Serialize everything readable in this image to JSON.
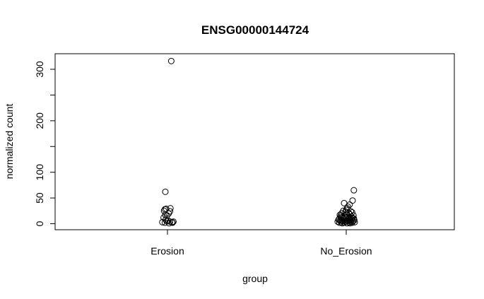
{
  "chart_data": {
    "type": "scatter",
    "title": "ENSG00000144724",
    "xlabel": "group",
    "ylabel": "normalized count",
    "categories": [
      "Erosion",
      "No_Erosion"
    ],
    "yticks": [
      0,
      50,
      100,
      200,
      300
    ],
    "ylim": [
      -10,
      325
    ],
    "grid": false,
    "legend": "none",
    "series": [
      {
        "group": "Erosion",
        "points": [
          {
            "j": 0.09,
            "y": 316
          },
          {
            "j": -0.05,
            "y": 62
          },
          {
            "j": -0.06,
            "y": 28
          },
          {
            "j": -0.03,
            "y": 29
          },
          {
            "j": 0.07,
            "y": 30
          },
          {
            "j": -0.08,
            "y": 25
          },
          {
            "j": 0.06,
            "y": 24
          },
          {
            "j": 0.03,
            "y": 20
          },
          {
            "j": -0.05,
            "y": 17
          },
          {
            "j": -0.01,
            "y": 16
          },
          {
            "j": -0.09,
            "y": 12
          },
          {
            "j": -0.04,
            "y": 8
          },
          {
            "j": 0.02,
            "y": 6
          },
          {
            "j": -0.02,
            "y": 5
          },
          {
            "j": 0.06,
            "y": 4
          },
          {
            "j": -0.12,
            "y": 3
          },
          {
            "j": 0.11,
            "y": 3
          },
          {
            "j": 0.14,
            "y": 4
          },
          {
            "j": 0.12,
            "y": 2
          },
          {
            "j": -0.06,
            "y": 2
          },
          {
            "j": 0.04,
            "y": 1
          }
        ]
      },
      {
        "group": "No_Erosion",
        "points": [
          {
            "j": 0.18,
            "y": 65
          },
          {
            "j": 0.15,
            "y": 45
          },
          {
            "j": -0.05,
            "y": 40
          },
          {
            "j": 0.08,
            "y": 37
          },
          {
            "j": 0.04,
            "y": 33
          },
          {
            "j": 0.02,
            "y": 30
          },
          {
            "j": -0.07,
            "y": 25
          },
          {
            "j": 0.11,
            "y": 24
          },
          {
            "j": -0.02,
            "y": 23
          },
          {
            "j": 0.14,
            "y": 22
          },
          {
            "j": 0.06,
            "y": 21
          },
          {
            "j": -0.11,
            "y": 20
          },
          {
            "j": 0.0,
            "y": 19
          },
          {
            "j": 0.09,
            "y": 18
          },
          {
            "j": -0.15,
            "y": 17
          },
          {
            "j": 0.17,
            "y": 16
          },
          {
            "j": -0.04,
            "y": 15
          },
          {
            "j": 0.12,
            "y": 14
          },
          {
            "j": -0.09,
            "y": 13
          },
          {
            "j": 0.03,
            "y": 13
          },
          {
            "j": 0.07,
            "y": 12
          },
          {
            "j": -0.13,
            "y": 12
          },
          {
            "j": 0.15,
            "y": 11
          },
          {
            "j": -0.01,
            "y": 11
          },
          {
            "j": 0.1,
            "y": 10
          },
          {
            "j": -0.06,
            "y": 10
          },
          {
            "j": 0.05,
            "y": 9
          },
          {
            "j": -0.17,
            "y": 9
          },
          {
            "j": 0.13,
            "y": 8
          },
          {
            "j": -0.03,
            "y": 8
          },
          {
            "j": 0.19,
            "y": 7
          },
          {
            "j": -0.1,
            "y": 7
          },
          {
            "j": 0.01,
            "y": 6
          },
          {
            "j": 0.08,
            "y": 6
          },
          {
            "j": -0.14,
            "y": 6
          },
          {
            "j": 0.16,
            "y": 5
          },
          {
            "j": -0.07,
            "y": 5
          },
          {
            "j": 0.04,
            "y": 5
          },
          {
            "j": -0.2,
            "y": 4
          },
          {
            "j": 0.11,
            "y": 4
          },
          {
            "j": -0.02,
            "y": 4
          },
          {
            "j": 0.2,
            "y": 3
          },
          {
            "j": -0.12,
            "y": 3
          },
          {
            "j": 0.06,
            "y": 3
          },
          {
            "j": -0.05,
            "y": 2
          },
          {
            "j": 0.14,
            "y": 2
          },
          {
            "j": -0.16,
            "y": 2
          },
          {
            "j": 0.02,
            "y": 1
          },
          {
            "j": -0.09,
            "y": 1
          },
          {
            "j": 0.09,
            "y": 1
          },
          {
            "j": -0.18,
            "y": 8
          },
          {
            "j": 0.18,
            "y": 10
          },
          {
            "j": -0.13,
            "y": 15
          },
          {
            "j": 0.0,
            "y": 27
          }
        ]
      }
    ]
  }
}
